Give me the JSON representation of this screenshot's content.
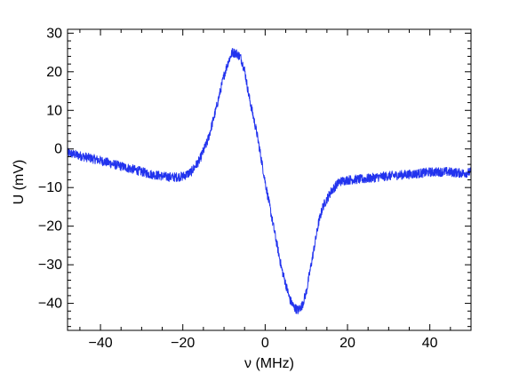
{
  "chart_data": {
    "type": "line",
    "xlabel": "ν (MHz)",
    "ylabel": "U (mV)",
    "xlim": [
      -48,
      50
    ],
    "ylim": [
      -47,
      31
    ],
    "xticks": [
      -40,
      -20,
      0,
      20,
      40
    ],
    "xtick_labels": [
      "−40",
      "−20",
      "0",
      "20",
      "40"
    ],
    "yticks": [
      30,
      20,
      10,
      0,
      -10,
      -20,
      -30,
      -40
    ],
    "ytick_labels": [
      "30",
      "20",
      "10",
      "0",
      "−10",
      "−20",
      "−30",
      "−40"
    ],
    "grid": false,
    "legend": "none",
    "series": [
      {
        "color": "#2233ee",
        "noise_amplitude": 1.2,
        "x": [
          -48,
          -44,
          -40,
          -36,
          -32,
          -28,
          -24,
          -22,
          -20,
          -18,
          -16,
          -14,
          -12,
          -10,
          -9,
          -8,
          -7,
          -6,
          -5,
          -4,
          -2,
          0,
          2,
          4,
          6,
          7,
          8,
          9,
          10,
          11,
          12,
          13,
          14,
          16,
          18,
          20,
          24,
          28,
          32,
          36,
          40,
          44,
          48,
          50
        ],
        "y": [
          -1,
          -2,
          -3,
          -4.2,
          -5.3,
          -6.5,
          -7.2,
          -7.3,
          -7.1,
          -6,
          -3,
          2,
          10,
          19,
          22.5,
          25,
          24.8,
          23.8,
          20.5,
          14,
          4,
          -8.5,
          -20,
          -31,
          -39,
          -41,
          -41.8,
          -40.5,
          -37,
          -31,
          -25,
          -19,
          -15,
          -11,
          -8.5,
          -8,
          -7.8,
          -7.2,
          -6.8,
          -6.5,
          -6,
          -5.9,
          -6.3,
          -6
        ]
      }
    ]
  }
}
